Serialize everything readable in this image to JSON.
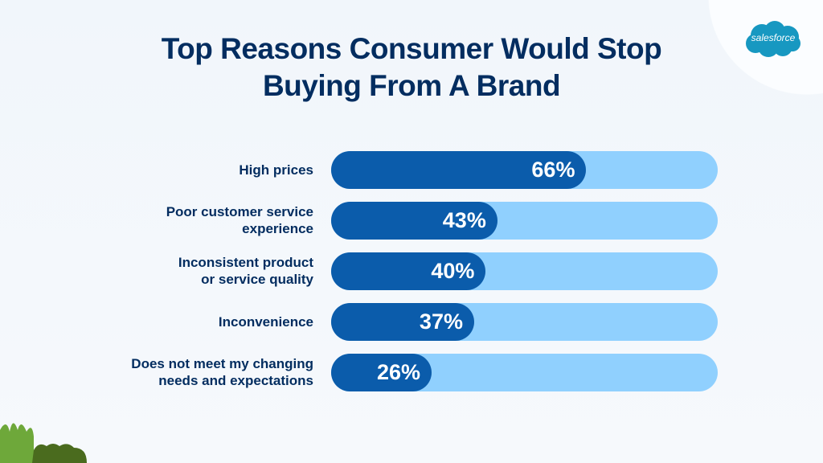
{
  "chart_data": {
    "type": "bar",
    "orientation": "horizontal",
    "title": "Top Reasons Consumer Would Stop Buying From A Brand",
    "title_lines": [
      "Top Reasons Consumer Would Stop",
      "Buying From A Brand"
    ],
    "categories": [
      [
        "High prices"
      ],
      [
        "Poor customer service",
        "experience"
      ],
      [
        "Inconsistent product",
        "or service quality"
      ],
      [
        "Inconvenience"
      ],
      [
        "Does not meet my changing",
        "needs and expectations"
      ]
    ],
    "values": [
      66,
      43,
      40,
      37,
      26
    ],
    "value_labels": [
      "66%",
      "43%",
      "40%",
      "37%",
      "26%"
    ],
    "xlim": [
      0,
      100
    ],
    "unit": "%",
    "grid": false,
    "colors": {
      "fill": "#0b5cab",
      "track": "#90d0fe",
      "title": "#032d60"
    }
  },
  "brand": {
    "logo_text": "salesforce",
    "logo_color": "#1798c1"
  }
}
